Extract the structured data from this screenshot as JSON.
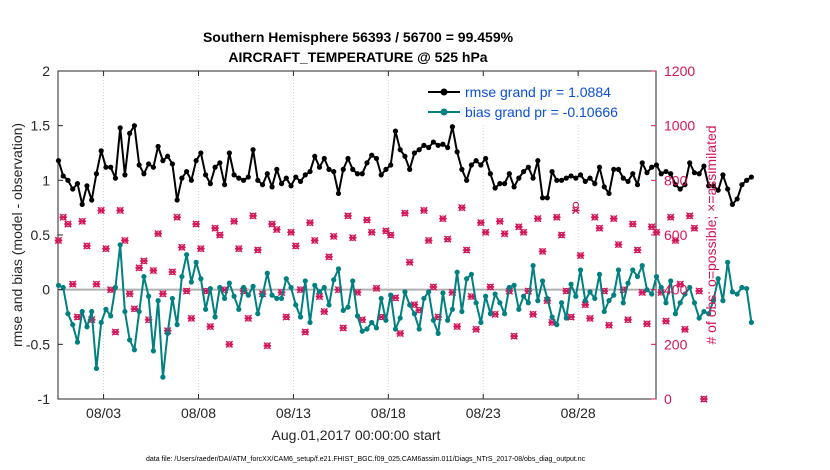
{
  "chart_data": {
    "type": "line",
    "title_line1": "Southern Hemisphere 56393 / 56700 = 99.459%",
    "title_line2": "AIRCRAFT_TEMPERATURE @ 525 hPa",
    "xlabel": "Aug.01,2017 00:00:00 start",
    "ylabel": "rmse and bias (model - observation)",
    "y2label": "# of obs: o=possible; ×=assimilated",
    "footer": "data file: /Users/raeder/DAI/ATM_forcXX/CAM6_setup/f.e21.FHIST_BGC.f09_025.CAM6assim.011/Diags_NTrS_2017-08/obs_diag_output.nc",
    "x_range": [
      0.6,
      32.1
    ],
    "ylim": [
      -1,
      2
    ],
    "y2lim": [
      0,
      1200
    ],
    "x_ticks": [
      3,
      8,
      13,
      18,
      23,
      28
    ],
    "x_tick_labels": [
      "08/03",
      "08/08",
      "08/13",
      "08/18",
      "08/23",
      "08/28"
    ],
    "y_ticks": [
      -1,
      -0.5,
      0,
      0.5,
      1,
      1.5,
      2
    ],
    "y_tick_labels": [
      "-1",
      "-0.5",
      "0",
      "0.5",
      "1",
      "1.5",
      "2"
    ],
    "y2_ticks": [
      0,
      200,
      400,
      600,
      800,
      1000,
      1200
    ],
    "y2_tick_labels": [
      "0",
      "200",
      "400",
      "600",
      "800",
      "1000",
      "1200"
    ],
    "grid": "vertical-dotted",
    "legend_position": "top-right",
    "colors": {
      "rmse": "#000000",
      "bias": "#008080",
      "obs": "#d4145a",
      "zero_line": "#b0b0b0",
      "legend_text": "#0b4fd8"
    },
    "series": [
      {
        "name": "rmse grand pr = 1.0884",
        "x_start": 0.625,
        "dx": 0.25,
        "values": [
          1.18,
          1.04,
          1.0,
          0.92,
          0.97,
          0.78,
          0.95,
          0.82,
          1.06,
          1.27,
          1.12,
          1.12,
          1.02,
          1.48,
          1.05,
          1.43,
          1.5,
          1.14,
          1.06,
          1.15,
          1.12,
          1.31,
          1.18,
          1.22,
          1.15,
          0.82,
          1.02,
          1.08,
          1.0,
          1.18,
          1.25,
          1.05,
          0.97,
          1.12,
          1.16,
          0.96,
          1.25,
          1.05,
          1.02,
          1.0,
          1.03,
          1.28,
          1.0,
          0.96,
          1.06,
          0.94,
          1.1,
          0.97,
          1.02,
          0.95,
          1.03,
          0.99,
          1.05,
          1.08,
          1.22,
          1.12,
          1.2,
          1.1,
          1.08,
          0.88,
          1.1,
          1.2,
          1.1,
          1.06,
          1.06,
          1.16,
          1.23,
          1.2,
          1.05,
          1.1,
          1.14,
          1.45,
          1.28,
          1.22,
          1.1,
          1.25,
          1.28,
          1.32,
          1.3,
          1.35,
          1.32,
          1.33,
          1.3,
          1.49,
          1.26,
          1.1,
          1.0,
          1.14,
          1.18,
          1.14,
          1.2,
          1.06,
          0.93,
          0.97,
          0.97,
          1.06,
          0.94,
          1.02,
          1.08,
          1.12,
          1.02,
          1.18,
          0.84,
          0.84,
          1.08,
          1.0,
          1.0,
          1.02,
          1.04,
          1.02,
          1.05,
          0.99,
          1.02,
          0.97,
          1.12,
          0.94,
          0.88,
          1.1,
          1.1,
          1.02,
          0.99,
          1.06,
          0.96,
          1.16,
          1.07,
          1.12,
          1.14,
          1.06,
          1.08,
          1.06,
          0.96,
          0.92,
          0.96,
          1.16,
          1.07,
          1.06,
          1.13,
          0.95,
          0.95,
          0.91,
          1.05,
          0.92,
          0.78,
          0.83,
          0.96,
          1.0,
          1.03
        ]
      },
      {
        "name": "bias grand pr = -0.10666",
        "x_start": 0.625,
        "dx": 0.25,
        "values": [
          0.04,
          0.02,
          -0.22,
          -0.32,
          -0.48,
          -0.2,
          -0.34,
          -0.2,
          -0.72,
          -0.3,
          -0.18,
          -0.24,
          0.02,
          0.41,
          -0.2,
          -0.46,
          -0.55,
          -0.2,
          0.12,
          -0.06,
          -0.56,
          -0.1,
          -0.8,
          -0.4,
          -0.08,
          -0.32,
          0.12,
          0.32,
          0.07,
          0.25,
          0.1,
          -0.18,
          0.01,
          -0.25,
          0.02,
          -0.08,
          0.06,
          -0.06,
          -0.18,
          0.02,
          -0.05,
          0.03,
          -0.22,
          -0.05,
          0.15,
          -0.05,
          -0.08,
          -0.08,
          0.1,
          0.02,
          -0.14,
          -0.25,
          0.08,
          -0.3,
          0.04,
          -0.02,
          0.02,
          -0.14,
          0.09,
          0.19,
          -0.19,
          -0.16,
          0.08,
          -0.24,
          -0.38,
          -0.36,
          -0.3,
          -0.35,
          -0.08,
          -0.28,
          -0.05,
          -0.36,
          -0.26,
          -0.02,
          -0.14,
          -0.22,
          -0.36,
          -0.08,
          -0.02,
          -0.28,
          -0.4,
          -0.03,
          -0.28,
          -0.18,
          0.16,
          -0.2,
          0.1,
          0.14,
          -0.12,
          -0.3,
          -0.06,
          -0.22,
          -0.04,
          -0.12,
          -0.22,
          0.02,
          0.04,
          -0.18,
          -0.06,
          -0.12,
          0.22,
          -0.1,
          0.08,
          -0.08,
          -0.25,
          -0.32,
          -0.12,
          -0.26,
          0.05,
          -0.06,
          0.18,
          -0.1,
          -0.02,
          -0.08,
          0.14,
          -0.2,
          -0.1,
          -0.05,
          0.18,
          -0.12,
          0.06,
          0.18,
          0.12,
          0.22,
          0.0,
          -0.04,
          0.12,
          0.02,
          -0.12,
          0.08,
          -0.22,
          -0.12,
          -0.04,
          0.02,
          -0.12,
          -0.26,
          -0.2,
          -0.22,
          -0.1,
          0.1,
          -0.1,
          0.25,
          -0.02,
          -0.04,
          0.02,
          0.01,
          -0.3
        ]
      },
      {
        "name": "obs possible",
        "x_start": 0.625,
        "dx": 0.25,
        "values": [
          580,
          665,
          640,
          420,
          300,
          650,
          560,
          290,
          420,
          690,
          550,
          400,
          245,
          690,
          580,
          385,
          330,
          480,
          505,
          290,
          470,
          605,
          385,
          250,
          465,
          665,
          555,
          395,
          295,
          640,
          550,
          395,
          265,
          625,
          600,
          400,
          200,
          650,
          550,
          395,
          295,
          670,
          545,
          385,
          195,
          640,
          620,
          390,
          300,
          610,
          560,
          400,
          245,
          645,
          580,
          375,
          320,
          520,
          595,
          400,
          260,
          670,
          590,
          390,
          290,
          655,
          610,
          405,
          300,
          615,
          600,
          370,
          240,
          680,
          500,
          345,
          325,
          690,
          580,
          410,
          300,
          660,
          585,
          390,
          265,
          700,
          545,
          375,
          255,
          645,
          610,
          410,
          310,
          650,
          605,
          395,
          230,
          630,
          610,
          395,
          310,
          660,
          540,
          360,
          280,
          665,
          600,
          395,
          300,
          710,
          525,
          345,
          295,
          665,
          625,
          395,
          270,
          660,
          565,
          400,
          290,
          640,
          545,
          390,
          275,
          630,
          610,
          390,
          285,
          665,
          580,
          420,
          255,
          670,
          625,
          395,
          0
        ]
      },
      {
        "name": "obs assimilated",
        "x_start": 0.625,
        "dx": 0.25,
        "values": [
          580,
          665,
          640,
          420,
          300,
          650,
          560,
          290,
          420,
          690,
          550,
          400,
          245,
          690,
          580,
          385,
          330,
          480,
          505,
          290,
          470,
          605,
          385,
          250,
          465,
          665,
          555,
          395,
          295,
          640,
          550,
          395,
          265,
          625,
          600,
          400,
          200,
          650,
          550,
          395,
          295,
          670,
          545,
          385,
          195,
          640,
          620,
          390,
          300,
          610,
          560,
          400,
          245,
          645,
          580,
          375,
          320,
          520,
          595,
          400,
          260,
          670,
          590,
          390,
          290,
          655,
          610,
          405,
          300,
          615,
          600,
          370,
          240,
          680,
          500,
          345,
          325,
          690,
          580,
          410,
          300,
          660,
          585,
          390,
          265,
          700,
          545,
          375,
          255,
          645,
          610,
          410,
          310,
          650,
          605,
          395,
          230,
          630,
          610,
          395,
          310,
          660,
          540,
          360,
          280,
          665,
          600,
          395,
          300,
          690,
          525,
          345,
          295,
          665,
          625,
          395,
          270,
          660,
          565,
          400,
          290,
          640,
          545,
          390,
          275,
          630,
          610,
          390,
          285,
          665,
          580,
          420,
          255,
          670,
          625,
          395,
          0
        ]
      }
    ]
  }
}
